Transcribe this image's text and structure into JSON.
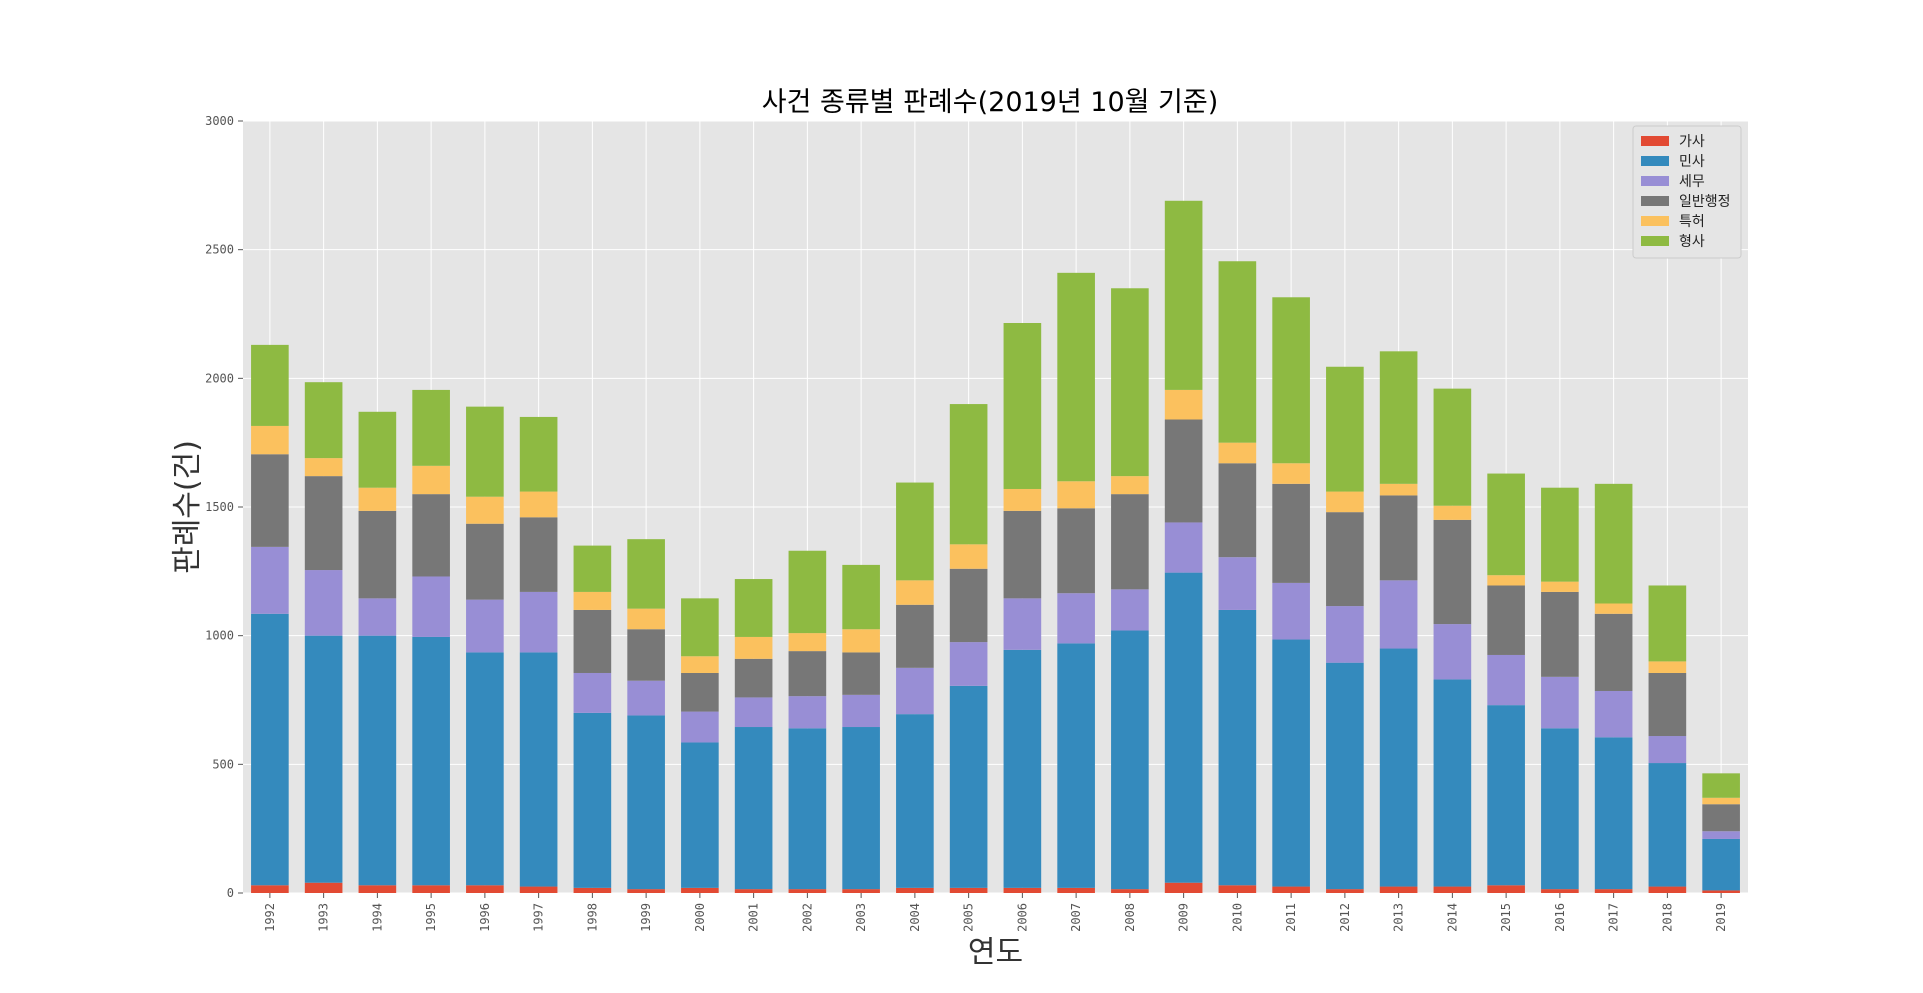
{
  "chart_data": {
    "type": "bar",
    "stacked": true,
    "title": "사건 종류별 판례수(2019년 10월 기준)",
    "xlabel": "연도",
    "ylabel": "판례수(건)",
    "ylim": [
      0,
      3000
    ],
    "yticks": [
      0,
      500,
      1000,
      1500,
      2000,
      2500,
      3000
    ],
    "grid": true,
    "legend": "top-right",
    "categories": [
      "1992",
      "1993",
      "1994",
      "1995",
      "1996",
      "1997",
      "1998",
      "1999",
      "2000",
      "2001",
      "2002",
      "2003",
      "2004",
      "2005",
      "2006",
      "2007",
      "2008",
      "2009",
      "2010",
      "2011",
      "2012",
      "2013",
      "2014",
      "2015",
      "2016",
      "2017",
      "2018",
      "2019"
    ],
    "series": [
      {
        "name": "가사",
        "color": "#E24A33",
        "values": [
          30,
          40,
          30,
          30,
          30,
          25,
          20,
          15,
          20,
          15,
          15,
          15,
          20,
          20,
          20,
          20,
          15,
          40,
          30,
          25,
          15,
          25,
          25,
          30,
          15,
          15,
          25,
          10
        ]
      },
      {
        "name": "민사",
        "color": "#348ABD",
        "values": [
          1055,
          960,
          970,
          965,
          905,
          910,
          680,
          675,
          565,
          630,
          625,
          630,
          675,
          785,
          925,
          950,
          1005,
          1205,
          1070,
          960,
          880,
          925,
          805,
          700,
          625,
          590,
          480,
          200
        ]
      },
      {
        "name": "세무",
        "color": "#988ED5",
        "values": [
          260,
          255,
          145,
          235,
          205,
          235,
          155,
          135,
          120,
          115,
          125,
          125,
          180,
          170,
          200,
          195,
          160,
          195,
          205,
          220,
          220,
          265,
          215,
          195,
          200,
          180,
          105,
          30
        ]
      },
      {
        "name": "일반행정",
        "color": "#777777",
        "values": [
          360,
          365,
          340,
          320,
          295,
          290,
          245,
          200,
          150,
          150,
          175,
          165,
          245,
          285,
          340,
          330,
          370,
          400,
          365,
          385,
          365,
          330,
          405,
          270,
          330,
          300,
          245,
          105
        ]
      },
      {
        "name": "특허",
        "color": "#FBC15E",
        "values": [
          110,
          70,
          90,
          110,
          105,
          100,
          70,
          80,
          65,
          85,
          70,
          90,
          95,
          95,
          85,
          105,
          70,
          115,
          80,
          80,
          80,
          45,
          55,
          40,
          40,
          40,
          45,
          25
        ]
      },
      {
        "name": "형사",
        "color": "#8EBA42",
        "values": [
          315,
          295,
          295,
          295,
          350,
          290,
          180,
          270,
          225,
          225,
          320,
          250,
          380,
          545,
          645,
          810,
          730,
          735,
          705,
          645,
          485,
          515,
          455,
          395,
          365,
          465,
          295,
          95
        ]
      }
    ]
  }
}
